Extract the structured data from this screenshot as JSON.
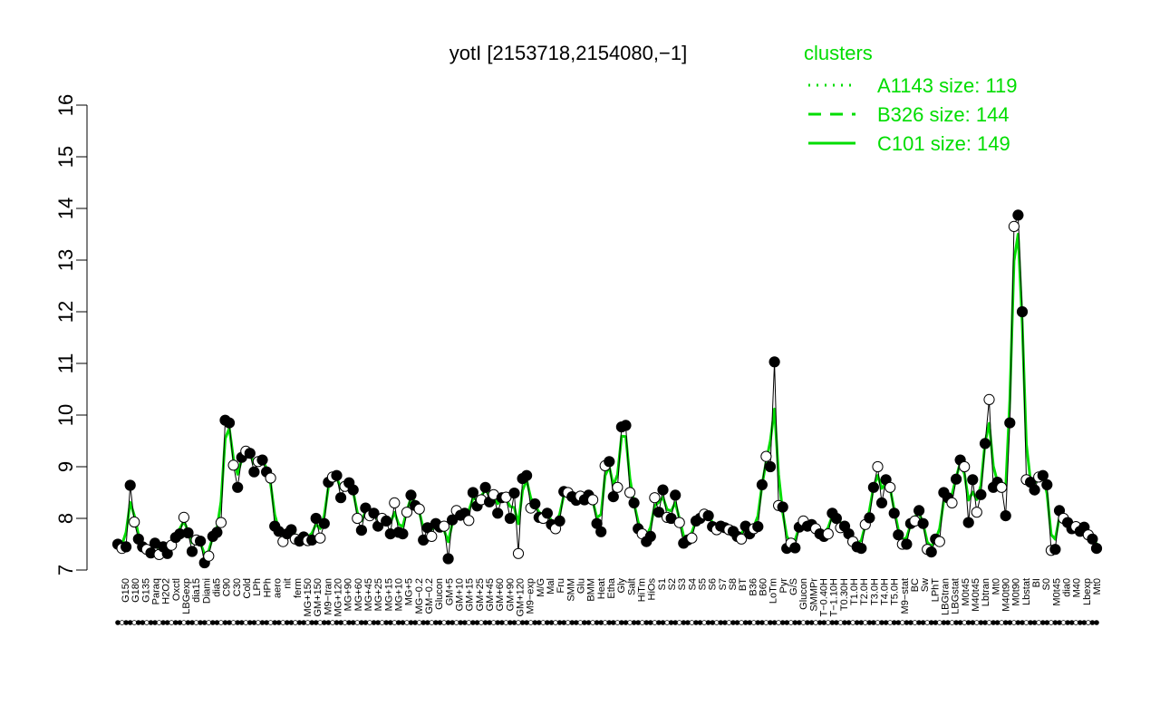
{
  "chart_data": {
    "type": "line",
    "title": "yotI [2153718,2154080,−1]",
    "xlabel": "",
    "ylabel": "",
    "ylim": [
      7,
      16
    ],
    "yticks": [
      7,
      8,
      9,
      10,
      11,
      12,
      13,
      14,
      15,
      16
    ],
    "colors": {
      "line": "#00dd00",
      "profile": "#000000",
      "legend": "#00dd00"
    },
    "legend": {
      "title": "clusters",
      "placement": "top-right",
      "entries": [
        {
          "style": "dotted",
          "label": "A1143 size: 119"
        },
        {
          "style": "dashed",
          "label": "B326 size: 144"
        },
        {
          "style": "solid",
          "label": "C101 size: 149"
        }
      ]
    },
    "x_tick_labels": [
      "G150",
      "G180",
      "G135",
      "Paraq",
      "H2O2",
      "Oxctl",
      "LBGexp",
      "dia15",
      "Diami",
      "dia5",
      "C90",
      "C30",
      "Cold",
      "LPh",
      "HPh",
      "aero",
      "nit",
      "ferm",
      "MG+150",
      "GM+150",
      "M9−tran",
      "MG+120",
      "MG+90",
      "MG+60",
      "MG+45",
      "MG+25",
      "MG+15",
      "MG+10",
      "MG+5",
      "MG−0.2",
      "GM−0.2",
      "Glucon",
      "GM+5",
      "GM+10",
      "GM+15",
      "GM+25",
      "GM+45",
      "GM+60",
      "GM+90",
      "GM+120",
      "M9−exp",
      "M/G",
      "Mal",
      "Fru",
      "SMM",
      "Glu",
      "BMM",
      "Heat",
      "Etha",
      "Gly",
      "Salt",
      "HiTm",
      "HiOs",
      "S1",
      "S2",
      "S3",
      "S4",
      "S5",
      "S6",
      "S7",
      "S8",
      "BT",
      "B36",
      "B60",
      "LoTm",
      "Pyr",
      "G/S",
      "Glucon",
      "SMMPr",
      "T−0.40H",
      "T−1.10H",
      "T0.30H",
      "T1.0H",
      "T2.0H",
      "T3.0H",
      "T4.0H",
      "T5.0H",
      "M9−stat",
      "BC",
      "Sw",
      "LPhT",
      "LBGtran",
      "LBGstat",
      "M0t45",
      "M40t45",
      "Lbtran",
      "Mt0",
      "M40t90",
      "M0t90",
      "Lbstat",
      "BI",
      "S0",
      "M0t45",
      "dia0",
      "M40",
      "Lbexp",
      "Mt0"
    ],
    "series": [
      {
        "style": "solid",
        "values": [
          7.5,
          7.42,
          7.45,
          8.64,
          7.93,
          7.6,
          7.45,
          7.4,
          7.33,
          7.52,
          7.3,
          7.45,
          7.32,
          7.48,
          7.63,
          7.7,
          8.02,
          7.72,
          7.36,
          7.58,
          7.56,
          7.14,
          7.27,
          7.65,
          7.73,
          7.92,
          9.9,
          9.85,
          9.03,
          8.6,
          9.18,
          9.3,
          9.26,
          8.9,
          9.1,
          9.13,
          8.9,
          8.78,
          7.85,
          7.75,
          7.55,
          7.7,
          7.78,
          7.6,
          7.56,
          7.64,
          7.57,
          7.58,
          8.0,
          7.62,
          7.9,
          8.7,
          8.8,
          8.83,
          8.4,
          8.62,
          8.69,
          8.55,
          8.0,
          7.77,
          8.2,
          8.05,
          8.1,
          7.85,
          8.0,
          7.95,
          7.7,
          8.3,
          7.73,
          7.7,
          8.12,
          8.45,
          8.25,
          8.18,
          7.58,
          7.82,
          7.65,
          7.9,
          7.83,
          7.85,
          7.22,
          7.97,
          8.15,
          8.06,
          8.1,
          7.96,
          8.5,
          8.24,
          8.36,
          8.6,
          8.32,
          8.46,
          8.1,
          8.4,
          8.41,
          8.0,
          8.49,
          7.32,
          8.77,
          8.83,
          8.2,
          8.28,
          8.02,
          8.0,
          8.1,
          7.88,
          7.8,
          7.95,
          8.52,
          8.5,
          8.42,
          8.35,
          8.43,
          8.36,
          8.45,
          8.36,
          7.9,
          7.74,
          9.02,
          9.1,
          8.42,
          8.6,
          9.77,
          9.8,
          8.5,
          8.3,
          7.8,
          7.7,
          7.55,
          7.65,
          8.4,
          8.12,
          8.55,
          8.02,
          8.0,
          8.45,
          7.92,
          7.52,
          7.58,
          7.62,
          7.95,
          8.0,
          8.08,
          8.05,
          7.84,
          7.78,
          7.85,
          7.82,
          7.78,
          7.75,
          7.65,
          7.6,
          7.85,
          7.7,
          7.8,
          7.84,
          8.65,
          9.2,
          9.0,
          11.03,
          8.25,
          8.22,
          7.42,
          7.52,
          7.43,
          7.83,
          7.95,
          7.85,
          7.88,
          7.8,
          7.7,
          7.65,
          7.7,
          8.1,
          8.0,
          7.82,
          7.85,
          7.7,
          7.55,
          7.45,
          7.42,
          7.88,
          8.01,
          8.6,
          9.0,
          8.3,
          8.75,
          8.6,
          8.1,
          7.68,
          7.5,
          7.5,
          7.9,
          7.95,
          8.15,
          7.9,
          7.4,
          7.35,
          7.6,
          7.55,
          8.5,
          8.4,
          8.3,
          8.76,
          9.13,
          9.0,
          7.92,
          8.75,
          8.12,
          8.46,
          9.45,
          10.3,
          8.6,
          8.7,
          8.6,
          8.05,
          9.85,
          13.65,
          13.87,
          12.0,
          8.75,
          8.7,
          8.55,
          8.8,
          8.83,
          8.65,
          7.38,
          7.4,
          8.15,
          8.0,
          7.92,
          7.8,
          7.84,
          7.75,
          7.83,
          7.68,
          7.6,
          7.42
        ]
      }
    ]
  }
}
